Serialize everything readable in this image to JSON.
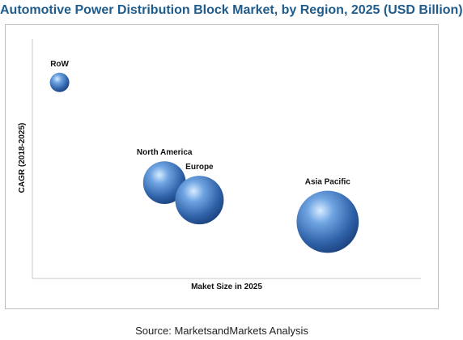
{
  "chart_data": {
    "type": "scatter",
    "title": "Automotive Power Distribution Block Market, by Region, 2025 (USD Billion)",
    "xlabel": "Maket Size in 2025",
    "ylabel": "CAGR (2018-2025)",
    "show_ticks": false,
    "grid": false,
    "bubble_color": "#3f76c0",
    "points": [
      {
        "label": "RoW",
        "x": 0.7,
        "y": 9.0,
        "size": 0.5
      },
      {
        "label": "North America",
        "x": 3.4,
        "y": 4.4,
        "size": 1.1
      },
      {
        "label": "Europe",
        "x": 4.3,
        "y": 3.6,
        "size": 1.25
      },
      {
        "label": "Asia Pacific",
        "x": 7.6,
        "y": 2.6,
        "size": 1.6
      }
    ],
    "xlim": [
      0,
      10
    ],
    "ylim": [
      0,
      11
    ]
  },
  "source": "Source: MarketsandMarkets Analysis"
}
